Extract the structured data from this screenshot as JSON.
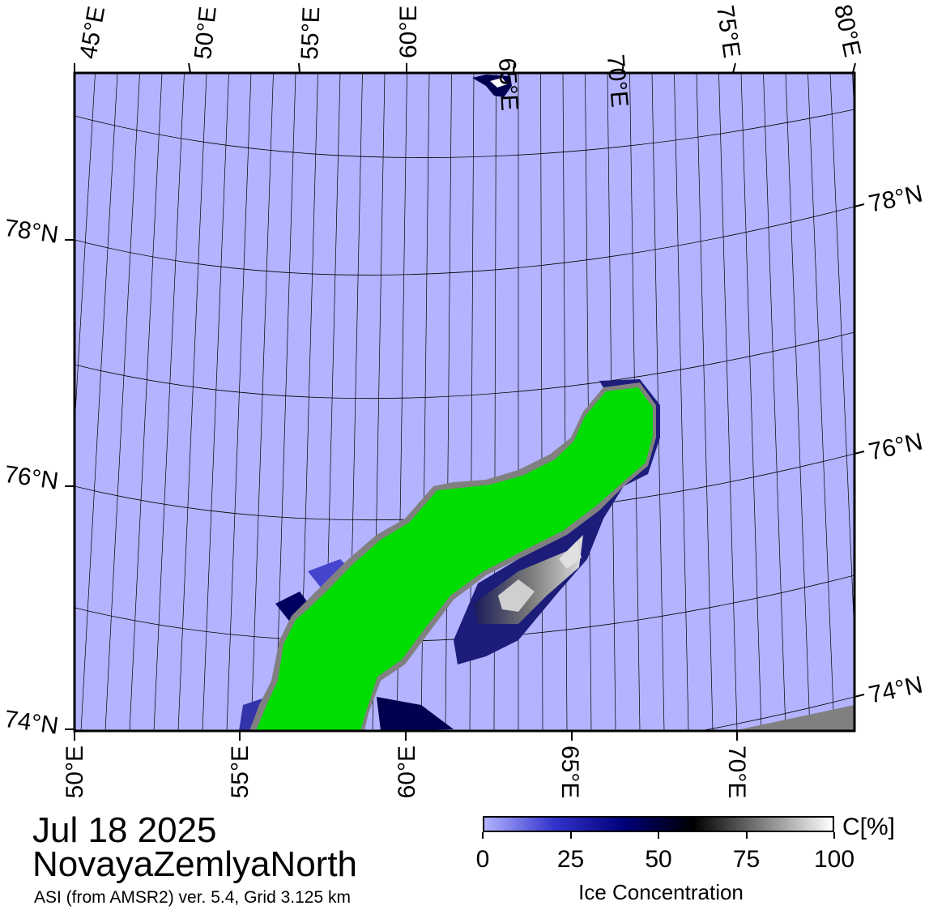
{
  "map": {
    "date": "Jul 18 2025",
    "region": "NovayaZemlyaNorth",
    "source": "ASI (from AMSR2) ver. 5.4,  Grid 3.125 km",
    "top_lon_labels": [
      "45°E",
      "50°E",
      "55°E",
      "60°E",
      "65°E",
      "70°E",
      "75°E",
      "80°E"
    ],
    "bottom_lon_labels": [
      "50°E",
      "55°E",
      "60°E",
      "65°E",
      "70°E"
    ],
    "left_lat_labels": [
      "78°N",
      "76°N",
      "74°N"
    ],
    "right_lat_labels": [
      "78°N",
      "76°N",
      "74°N"
    ],
    "colors": {
      "water": "#b3b3ff",
      "land": "#00dd00",
      "coast": "#808080",
      "ice_low": "#000060",
      "ice_high": "#ffffff"
    }
  },
  "colorbar": {
    "unit": "C[%]",
    "title": "Ice Concentration",
    "ticks": [
      "0",
      "25",
      "50",
      "75",
      "100"
    ],
    "stops": [
      "#b3b3ff",
      "#3333cc",
      "#00007a",
      "#000000",
      "#808080",
      "#ffffff"
    ]
  }
}
